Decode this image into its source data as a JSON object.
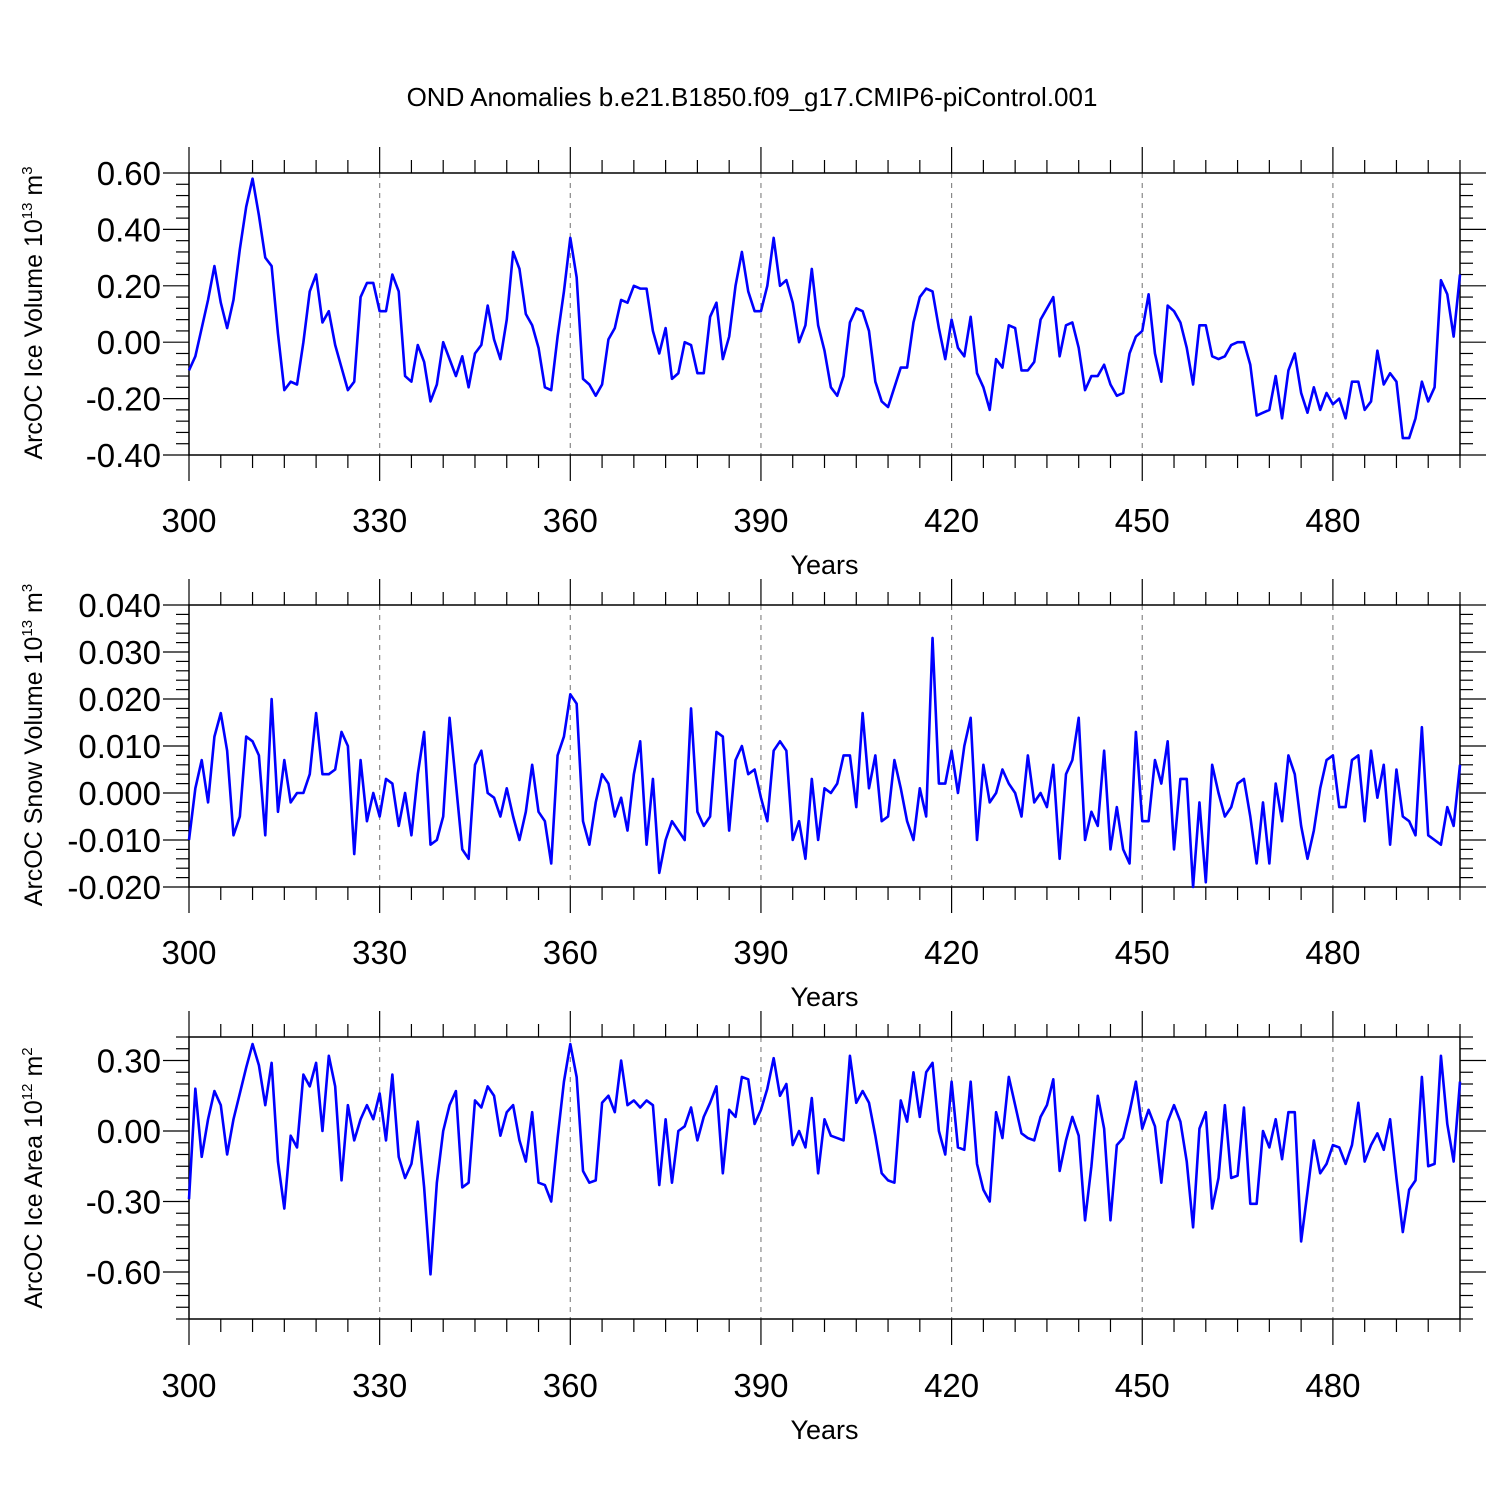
{
  "title": "OND Anomalies b.e21.B1850.f09_g17.CMIP6-piControl.001",
  "colors": {
    "line": "#0000ff",
    "axis": "#000000",
    "grid": "#888888"
  },
  "chart_data": [
    {
      "type": "line",
      "name": "ice-volume",
      "xlabel": "Years",
      "ylabel": {
        "text": "ArcOC Ice Volume 10",
        "exponent": "13",
        "units": " m",
        "unit_exponent": "3"
      },
      "xlim": [
        300,
        500
      ],
      "ylim": [
        -0.4,
        0.6
      ],
      "plot_ylim": [
        -0.4,
        0.6
      ],
      "x_ticks": [
        "300",
        "330",
        "360",
        "390",
        "420",
        "450",
        "480"
      ],
      "x_tick_values": [
        300,
        330,
        360,
        390,
        420,
        450,
        480
      ],
      "y_ticks": [
        "-0.40",
        "-0.20",
        "0.00",
        "0.20",
        "0.40",
        "0.60"
      ],
      "y_tick_values": [
        -0.4,
        -0.2,
        0,
        0.2,
        0.4,
        0.6
      ],
      "y_minor_step": 0.04,
      "x_minor_step": 5,
      "grid": "vertical dashed at major x ticks",
      "x_start": 300,
      "values": [
        -0.1,
        -0.05,
        0.05,
        0.15,
        0.27,
        0.14,
        0.05,
        0.15,
        0.33,
        0.48,
        0.58,
        0.45,
        0.3,
        0.27,
        0.03,
        -0.17,
        -0.14,
        -0.15,
        0.0,
        0.18,
        0.24,
        0.07,
        0.11,
        -0.01,
        -0.09,
        -0.17,
        -0.14,
        0.16,
        0.21,
        0.21,
        0.11,
        0.11,
        0.24,
        0.18,
        -0.12,
        -0.14,
        -0.01,
        -0.07,
        -0.21,
        -0.15,
        0.0,
        -0.06,
        -0.12,
        -0.05,
        -0.16,
        -0.04,
        -0.01,
        0.13,
        0.01,
        -0.06,
        0.08,
        0.32,
        0.26,
        0.1,
        0.06,
        -0.02,
        -0.16,
        -0.17,
        0.02,
        0.18,
        0.37,
        0.23,
        -0.13,
        -0.15,
        -0.19,
        -0.15,
        0.01,
        0.05,
        0.15,
        0.14,
        0.2,
        0.19,
        0.19,
        0.04,
        -0.04,
        0.05,
        -0.13,
        -0.11,
        0.0,
        -0.01,
        -0.11,
        -0.11,
        0.09,
        0.14,
        -0.06,
        0.02,
        0.2,
        0.32,
        0.18,
        0.11,
        0.11,
        0.2,
        0.37,
        0.2,
        0.22,
        0.14,
        0.0,
        0.06,
        0.26,
        0.06,
        -0.03,
        -0.16,
        -0.19,
        -0.12,
        0.07,
        0.12,
        0.11,
        0.04,
        -0.14,
        -0.21,
        -0.23,
        -0.16,
        -0.09,
        -0.09,
        0.07,
        0.16,
        0.19,
        0.18,
        0.05,
        -0.06,
        0.08,
        -0.02,
        -0.05,
        0.09,
        -0.11,
        -0.16,
        -0.24,
        -0.06,
        -0.09,
        0.06,
        0.05,
        -0.1,
        -0.1,
        -0.07,
        0.08,
        0.12,
        0.16,
        -0.05,
        0.06,
        0.07,
        -0.02,
        -0.17,
        -0.12,
        -0.12,
        -0.08,
        -0.15,
        -0.19,
        -0.18,
        -0.04,
        0.02,
        0.04,
        0.17,
        -0.04,
        -0.14,
        0.13,
        0.11,
        0.07,
        -0.02,
        -0.15,
        0.06,
        0.06,
        -0.05,
        -0.06,
        -0.05,
        -0.01,
        0.0,
        0.0,
        -0.08,
        -0.26,
        -0.25,
        -0.24,
        -0.12,
        -0.27,
        -0.1,
        -0.04,
        -0.18,
        -0.25,
        -0.16,
        -0.24,
        -0.18,
        -0.22,
        -0.2,
        -0.27,
        -0.14,
        -0.14,
        -0.24,
        -0.21,
        -0.03,
        -0.15,
        -0.11,
        -0.14,
        -0.34,
        -0.34,
        -0.27,
        -0.14,
        -0.21,
        -0.16,
        0.22,
        0.17,
        0.02,
        0.24
      ]
    },
    {
      "type": "line",
      "name": "snow-volume",
      "xlabel": "Years",
      "ylabel": {
        "text": "ArcOC Snow Volume 10",
        "exponent": "13",
        "units": " m",
        "unit_exponent": "3"
      },
      "xlim": [
        300,
        500
      ],
      "ylim": [
        -0.02,
        0.04
      ],
      "plot_ylim": [
        -0.02,
        0.04
      ],
      "x_ticks": [
        "300",
        "330",
        "360",
        "390",
        "420",
        "450",
        "480"
      ],
      "x_tick_values": [
        300,
        330,
        360,
        390,
        420,
        450,
        480
      ],
      "y_ticks": [
        "-0.020",
        "-0.010",
        "0.000",
        "0.010",
        "0.020",
        "0.030",
        "0.040"
      ],
      "y_tick_values": [
        -0.02,
        -0.01,
        0,
        0.01,
        0.02,
        0.03,
        0.04
      ],
      "y_minor_step": 0.002,
      "x_minor_step": 5,
      "grid": "vertical dashed at major x ticks",
      "x_start": 300,
      "values": [
        -0.01,
        0.001,
        0.007,
        -0.002,
        0.012,
        0.017,
        0.009,
        -0.009,
        -0.005,
        0.012,
        0.011,
        0.008,
        -0.009,
        0.02,
        -0.004,
        0.007,
        -0.002,
        0.0,
        0.0,
        0.004,
        0.017,
        0.004,
        0.004,
        0.005,
        0.013,
        0.01,
        -0.013,
        0.007,
        -0.006,
        0.0,
        -0.005,
        0.003,
        0.002,
        -0.007,
        0.0,
        -0.009,
        0.004,
        0.013,
        -0.011,
        -0.01,
        -0.005,
        0.016,
        0.002,
        -0.012,
        -0.014,
        0.006,
        0.009,
        0.0,
        -0.001,
        -0.005,
        0.001,
        -0.005,
        -0.01,
        -0.004,
        0.006,
        -0.004,
        -0.006,
        -0.015,
        0.008,
        0.012,
        0.021,
        0.019,
        -0.006,
        -0.011,
        -0.002,
        0.004,
        0.002,
        -0.005,
        -0.001,
        -0.008,
        0.004,
        0.011,
        -0.011,
        0.003,
        -0.017,
        -0.01,
        -0.006,
        -0.008,
        -0.01,
        0.018,
        -0.004,
        -0.007,
        -0.005,
        0.013,
        0.012,
        -0.008,
        0.007,
        0.01,
        0.004,
        0.005,
        -0.001,
        -0.006,
        0.009,
        0.011,
        0.009,
        -0.01,
        -0.006,
        -0.014,
        0.003,
        -0.01,
        0.001,
        0.0,
        0.002,
        0.008,
        0.008,
        -0.003,
        0.017,
        0.001,
        0.008,
        -0.006,
        -0.005,
        0.007,
        0.001,
        -0.006,
        -0.01,
        0.001,
        -0.005,
        0.033,
        0.002,
        0.002,
        0.009,
        0.0,
        0.01,
        0.016,
        -0.01,
        0.006,
        -0.002,
        0.0,
        0.005,
        0.002,
        0.0,
        -0.005,
        0.008,
        -0.002,
        0.0,
        -0.003,
        0.006,
        -0.014,
        0.004,
        0.007,
        0.016,
        -0.01,
        -0.004,
        -0.007,
        0.009,
        -0.012,
        -0.003,
        -0.012,
        -0.015,
        0.013,
        -0.006,
        -0.006,
        0.007,
        0.002,
        0.011,
        -0.012,
        0.003,
        0.003,
        -0.02,
        -0.002,
        -0.019,
        0.006,
        0.0,
        -0.005,
        -0.003,
        0.002,
        0.003,
        -0.005,
        -0.015,
        -0.002,
        -0.015,
        0.002,
        -0.006,
        0.008,
        0.004,
        -0.007,
        -0.014,
        -0.008,
        0.001,
        0.007,
        0.008,
        -0.003,
        -0.003,
        0.007,
        0.008,
        -0.006,
        0.009,
        -0.001,
        0.006,
        -0.011,
        0.005,
        -0.005,
        -0.006,
        -0.009,
        0.014,
        -0.009,
        -0.01,
        -0.011,
        -0.003,
        -0.007,
        0.006
      ]
    },
    {
      "type": "line",
      "name": "ice-area",
      "xlabel": "Years",
      "ylabel": {
        "text": "ArcOC Ice Area 10",
        "exponent": "12",
        "units": " m",
        "unit_exponent": "2"
      },
      "xlim": [
        300,
        500
      ],
      "ylim": [
        -0.8,
        0.4
      ],
      "plot_ylim": [
        -0.8,
        0.4
      ],
      "x_ticks": [
        "300",
        "330",
        "360",
        "390",
        "420",
        "450",
        "480"
      ],
      "x_tick_values": [
        300,
        330,
        360,
        390,
        420,
        450,
        480
      ],
      "y_ticks": [
        "-0.60",
        "-0.30",
        "0.00",
        "0.30"
      ],
      "y_tick_values": [
        -0.6,
        -0.3,
        0,
        0.3
      ],
      "y_minor_step": 0.05,
      "x_minor_step": 5,
      "grid": "vertical dashed at major x ticks",
      "x_start": 300,
      "values": [
        -0.29,
        0.18,
        -0.11,
        0.05,
        0.17,
        0.11,
        -0.1,
        0.05,
        0.16,
        0.27,
        0.37,
        0.28,
        0.11,
        0.29,
        -0.13,
        -0.33,
        -0.02,
        -0.07,
        0.24,
        0.19,
        0.29,
        0.0,
        0.32,
        0.19,
        -0.21,
        0.11,
        -0.04,
        0.05,
        0.11,
        0.05,
        0.16,
        -0.04,
        0.24,
        -0.11,
        -0.2,
        -0.14,
        0.04,
        -0.24,
        -0.61,
        -0.22,
        0.0,
        0.11,
        0.17,
        -0.24,
        -0.22,
        0.13,
        0.1,
        0.19,
        0.15,
        -0.02,
        0.08,
        0.11,
        -0.04,
        -0.13,
        0.08,
        -0.22,
        -0.23,
        -0.3,
        -0.03,
        0.21,
        0.37,
        0.23,
        -0.17,
        -0.22,
        -0.21,
        0.12,
        0.15,
        0.08,
        0.3,
        0.11,
        0.13,
        0.1,
        0.13,
        0.11,
        -0.23,
        0.05,
        -0.22,
        0.0,
        0.02,
        0.1,
        -0.04,
        0.06,
        0.12,
        0.19,
        -0.18,
        0.09,
        0.06,
        0.23,
        0.22,
        0.03,
        0.09,
        0.18,
        0.31,
        0.15,
        0.2,
        -0.06,
        0.0,
        -0.07,
        0.14,
        -0.18,
        0.05,
        -0.02,
        -0.03,
        -0.04,
        0.32,
        0.12,
        0.17,
        0.12,
        -0.02,
        -0.18,
        -0.21,
        -0.22,
        0.13,
        0.04,
        0.25,
        0.06,
        0.25,
        0.29,
        0.0,
        -0.1,
        0.21,
        -0.07,
        -0.08,
        0.21,
        -0.14,
        -0.25,
        -0.3,
        0.08,
        -0.03,
        0.23,
        0.11,
        -0.01,
        -0.03,
        -0.04,
        0.06,
        0.11,
        0.22,
        -0.17,
        -0.04,
        0.06,
        -0.02,
        -0.38,
        -0.15,
        0.15,
        0.01,
        -0.38,
        -0.06,
        -0.03,
        0.08,
        0.21,
        0.01,
        0.09,
        0.02,
        -0.22,
        0.04,
        0.11,
        0.04,
        -0.13,
        -0.41,
        0.01,
        0.08,
        -0.33,
        -0.2,
        0.11,
        -0.2,
        -0.19,
        0.1,
        -0.31,
        -0.31,
        0.0,
        -0.07,
        0.05,
        -0.12,
        0.08,
        0.08,
        -0.47,
        -0.26,
        -0.04,
        -0.18,
        -0.14,
        -0.06,
        -0.07,
        -0.14,
        -0.06,
        0.12,
        -0.13,
        -0.06,
        -0.01,
        -0.08,
        0.05,
        -0.2,
        -0.43,
        -0.25,
        -0.21,
        0.23,
        -0.15,
        -0.14,
        0.32,
        0.03,
        -0.13,
        0.21
      ]
    }
  ]
}
